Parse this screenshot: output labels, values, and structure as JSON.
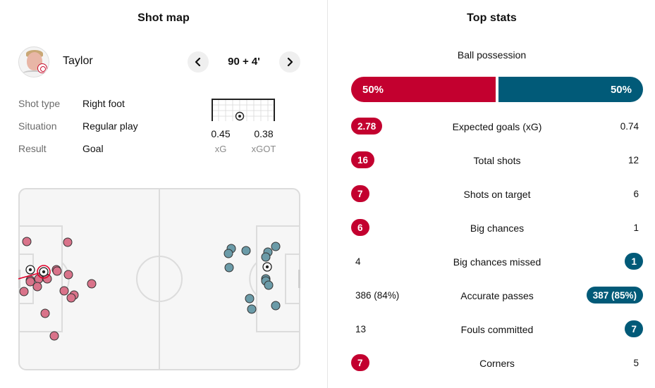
{
  "shot_map": {
    "title": "Shot map",
    "player": {
      "name": "Taylor",
      "avatar": "player-photo"
    },
    "minute": "90 + 4'",
    "prev_icon": "chevron-left-icon",
    "next_icon": "chevron-right-icon",
    "details": [
      {
        "label": "Shot type",
        "value": "Right foot"
      },
      {
        "label": "Situation",
        "value": "Regular play"
      },
      {
        "label": "Result",
        "value": "Goal"
      }
    ],
    "xg": {
      "value": "0.45",
      "label": "xG"
    },
    "xgot": {
      "value": "0.38",
      "label": "xGOT"
    },
    "goal_icon": "football-icon",
    "colors": {
      "home": "#d9738a",
      "away": "#6b9ba8",
      "selected": "#e0002a"
    }
  },
  "top_stats": {
    "title": "Top stats",
    "possession": {
      "label": "Ball possession",
      "home": "50%",
      "away": "50%",
      "home_fraction": 0.5
    },
    "rows": [
      {
        "label": "Expected goals (xG)",
        "home": "2.78",
        "away": "0.74",
        "highlight": "home"
      },
      {
        "label": "Total shots",
        "home": "16",
        "away": "12",
        "highlight": "home"
      },
      {
        "label": "Shots on target",
        "home": "7",
        "away": "6",
        "highlight": "home"
      },
      {
        "label": "Big chances",
        "home": "6",
        "away": "1",
        "highlight": "home"
      },
      {
        "label": "Big chances missed",
        "home": "4",
        "away": "1",
        "highlight": "away"
      },
      {
        "label": "Accurate passes",
        "home": "386 (84%)",
        "away": "387 (85%)",
        "highlight": "away"
      },
      {
        "label": "Fouls committed",
        "home": "13",
        "away": "7",
        "highlight": "away"
      },
      {
        "label": "Corners",
        "home": "7",
        "away": "5",
        "highlight": "home"
      }
    ],
    "colors": {
      "home": "#c3002f",
      "away": "#015a78"
    }
  }
}
